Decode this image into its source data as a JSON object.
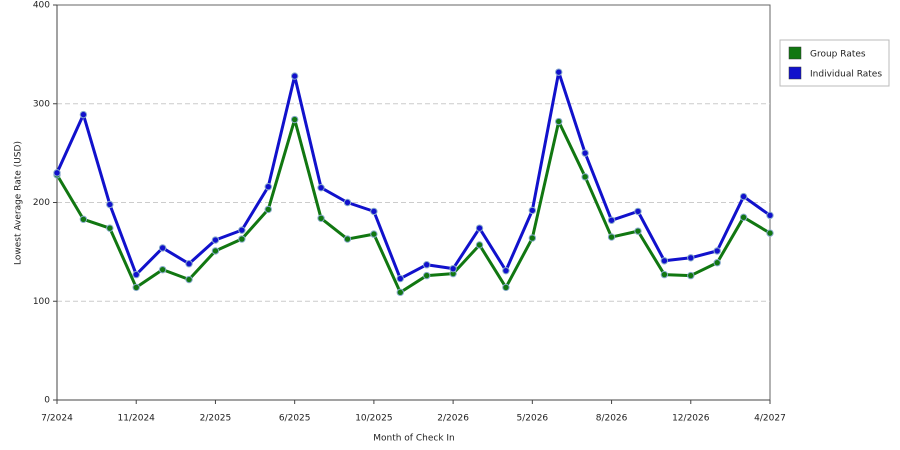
{
  "chart_data": {
    "type": "line",
    "x_label": "Month of Check In",
    "y_label": "Lowest Average Rate (USD)",
    "categories": [
      "7/2024",
      null,
      null,
      "11/2024",
      null,
      null,
      "2/2025",
      null,
      null,
      "6/2025",
      null,
      null,
      "10/2025",
      null,
      null,
      "2/2026",
      null,
      null,
      "5/2026",
      null,
      null,
      "8/2026",
      null,
      null,
      "12/2026",
      null,
      null,
      "4/2027"
    ],
    "series": [
      {
        "name": "Group Rates",
        "color": "#117711",
        "values": [
          228,
          183,
          174,
          114,
          132,
          122,
          151,
          163,
          193,
          284,
          184,
          163,
          168,
          109,
          126,
          128,
          157,
          114,
          164,
          282,
          226,
          165,
          171,
          127,
          126,
          139,
          185,
          169
        ]
      },
      {
        "name": "Individual Rates",
        "color": "#1111cc",
        "values": [
          230,
          289,
          198,
          127,
          154,
          138,
          162,
          172,
          216,
          328,
          215,
          200,
          191,
          123,
          137,
          133,
          174,
          131,
          192,
          332,
          250,
          182,
          191,
          141,
          144,
          151,
          206,
          187
        ]
      }
    ],
    "ylim": [
      0,
      400
    ],
    "yticks": [
      0,
      100,
      200,
      300,
      400
    ],
    "grid": true,
    "legend": "right"
  }
}
